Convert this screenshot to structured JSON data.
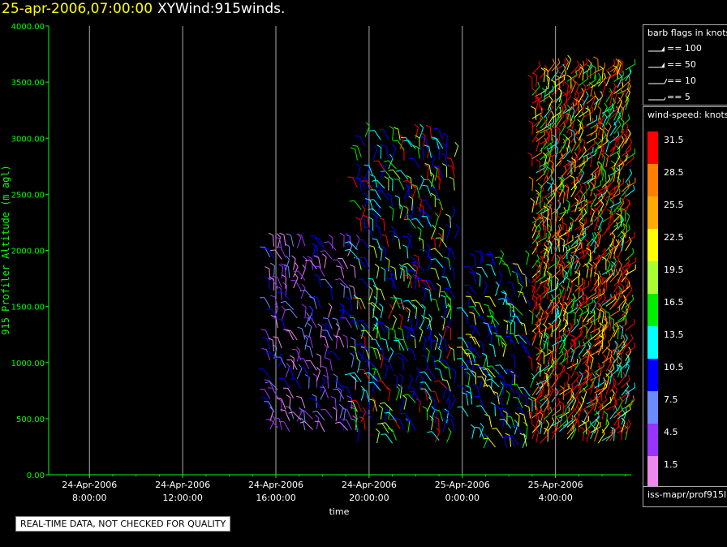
{
  "header": {
    "timestamp": "25-apr-2006,07:00:00",
    "title": "XYWind:915winds."
  },
  "quality_notice": "REAL-TIME DATA, NOT CHECKED FOR QUALITY",
  "barb_legend": {
    "title": "barb flags in knots",
    "items": [
      {
        "label": "== 100",
        "knots": 100
      },
      {
        "label": "== 50",
        "knots": 50
      },
      {
        "label": "== 10",
        "knots": 10
      },
      {
        "label": "== 5",
        "knots": 5
      }
    ]
  },
  "speed_legend": {
    "title": "wind-speed: knots",
    "bins": [
      {
        "label": "31.5",
        "color": "#ff0000"
      },
      {
        "label": "28.5",
        "color": "#ff8000"
      },
      {
        "label": "25.5",
        "color": "#ffaa00"
      },
      {
        "label": "22.5",
        "color": "#ffff00"
      },
      {
        "label": "19.5",
        "color": "#aaff33"
      },
      {
        "label": "16.5",
        "color": "#00ee00"
      },
      {
        "label": "13.5",
        "color": "#00ffff"
      },
      {
        "label": "10.5",
        "color": "#0000ff"
      },
      {
        "label": "7.5",
        "color": "#6a8cff"
      },
      {
        "label": "4.5",
        "color": "#9933ff"
      },
      {
        "label": "1.5",
        "color": "#ee88ee"
      }
    ]
  },
  "source_label": "iss-mapr/prof915l",
  "colors": {
    "background": "#000000",
    "axis": "#00ff00",
    "gridline": "#aaaaaa",
    "header_time": "#ffff00"
  },
  "chart_data": {
    "type": "scatter",
    "subtype": "wind-barb time-height profile",
    "xlabel": "time",
    "ylabel": "915 Profiler Altitude (m agl)",
    "ylim": [
      0,
      4000
    ],
    "yticks": [
      "0.00",
      "500.00",
      "1000.00",
      "1500.00",
      "2000.00",
      "2500.00",
      "3000.00",
      "3500.00",
      "4000.00"
    ],
    "xlim": [
      "2006-04-24 06:15",
      "2006-04-25 07:15"
    ],
    "xticks": [
      {
        "date": "24-Apr-2006",
        "time": "8:00:00",
        "at": "2006-04-24 08:00"
      },
      {
        "date": "24-Apr-2006",
        "time": "12:00:00",
        "at": "2006-04-24 12:00"
      },
      {
        "date": "24-Apr-2006",
        "time": "16:00:00",
        "at": "2006-04-24 16:00"
      },
      {
        "date": "24-Apr-2006",
        "time": "20:00:00",
        "at": "2006-04-24 20:00"
      },
      {
        "date": "25-Apr-2006",
        "time": "0:00:00",
        "at": "2006-04-25 00:00"
      },
      {
        "date": "25-Apr-2006",
        "time": "4:00:00",
        "at": "2006-04-25 04:00"
      }
    ],
    "grid": "vertical lines at x ticks",
    "legend_position": "right",
    "speed_units": "knots",
    "series": [
      {
        "period": "2006-04-24 15:45 to 2006-04-24 19:30",
        "altitude_range_m": [
          400,
          2100
        ],
        "dominant_speed_bins": [
          "4.5",
          "7.5",
          "1.5",
          "10.5"
        ]
      },
      {
        "period": "2006-04-24 19:30 to 2006-04-24 23:45",
        "altitude_range_m": [
          300,
          3050
        ],
        "dominant_speed_bins": [
          "10.5",
          "13.5",
          "16.5",
          "19.5",
          "31.5"
        ]
      },
      {
        "period": "2006-04-25 00:15 to 2006-04-25 03:00",
        "altitude_range_m": [
          250,
          1900
        ],
        "dominant_speed_bins": [
          "10.5",
          "13.5",
          "16.5",
          "22.5"
        ]
      },
      {
        "period": "2006-04-25 03:00 to 2006-04-25 07:00",
        "altitude_range_m": [
          300,
          3600
        ],
        "dominant_speed_bins": [
          "31.5",
          "28.5",
          "22.5",
          "16.5",
          "13.5"
        ]
      }
    ]
  }
}
